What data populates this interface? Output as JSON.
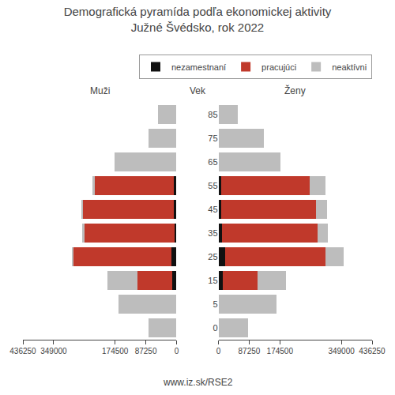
{
  "chart_data": [
    {
      "type": "bar",
      "orientation": "horizontal",
      "stacked": true,
      "title": "Demografická pyramída podľa ekonomickej aktivity\nJužné Švédsko, rok 2022",
      "xlabel": "Muži",
      "ylabel": "Vek",
      "categories": [
        "85",
        "75",
        "65",
        "55",
        "45",
        "35",
        "25",
        "15",
        "5",
        "0"
      ],
      "xlim": [
        436250,
        0
      ],
      "xticks": [
        436250,
        349000,
        174500,
        87250,
        0
      ],
      "grid": false,
      "tick_labels": "x",
      "series": [
        {
          "name": "nezamestnaní",
          "color": "#111111",
          "values": [
            0,
            0,
            0,
            8000,
            7000,
            5000,
            15000,
            12000,
            0,
            0
          ]
        },
        {
          "name": "pracujúci",
          "color": "#c0392b",
          "values": [
            0,
            0,
            0,
            225000,
            258000,
            258000,
            278000,
            100000,
            0,
            0
          ]
        },
        {
          "name": "neaktívni",
          "color": "#bdbdbd",
          "values": [
            52000,
            80000,
            175000,
            5000,
            5000,
            4000,
            5000,
            85000,
            165000,
            80000
          ]
        }
      ]
    },
    {
      "type": "bar",
      "orientation": "horizontal",
      "stacked": true,
      "xlabel": "Ženy",
      "categories": [
        "85",
        "75",
        "65",
        "55",
        "45",
        "35",
        "25",
        "15",
        "5",
        "0"
      ],
      "xlim": [
        0,
        436250
      ],
      "xticks": [
        0,
        87250,
        174500,
        349000,
        436250
      ],
      "grid": false,
      "legend": "upper right",
      "annotations": [
        "www.iz.sk/RSE2"
      ],
      "series": [
        {
          "name": "nezamestnaní",
          "color": "#111111",
          "values": [
            0,
            0,
            0,
            8000,
            8000,
            10000,
            20000,
            12000,
            0,
            0
          ]
        },
        {
          "name": "pracujúci",
          "color": "#c0392b",
          "values": [
            0,
            0,
            0,
            250000,
            270000,
            272000,
            285000,
            100000,
            0,
            0
          ]
        },
        {
          "name": "neaktívni",
          "color": "#bdbdbd",
          "values": [
            55000,
            130000,
            175000,
            45000,
            30000,
            28000,
            50000,
            80000,
            165000,
            85000
          ]
        }
      ]
    }
  ]
}
